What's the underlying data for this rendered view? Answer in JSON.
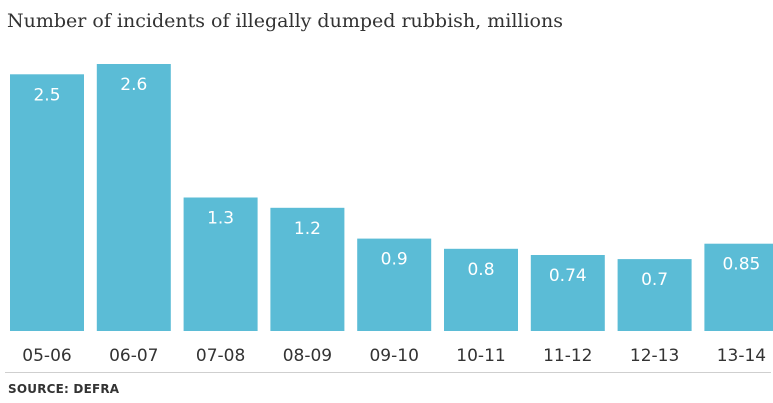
{
  "chart_data": {
    "type": "bar",
    "title": "Number of incidents of illegally dumped rubbish, millions",
    "categories": [
      "05-06",
      "06-07",
      "07-08",
      "08-09",
      "09-10",
      "10-11",
      "11-12",
      "12-13",
      "13-14"
    ],
    "values": [
      2.5,
      2.6,
      1.3,
      1.2,
      0.9,
      0.8,
      0.74,
      0.7,
      0.85
    ],
    "value_labels": [
      "2.5",
      "2.6",
      "1.3",
      "1.2",
      "0.9",
      "0.8",
      "0.74",
      "0.7",
      "0.85"
    ],
    "ylim": [
      0,
      2.6
    ],
    "grid": false,
    "bar_color": "#5bbcd6",
    "label_color": "#ffffff",
    "xlabel": "",
    "ylabel": ""
  },
  "source": "SOURCE: DEFRA"
}
